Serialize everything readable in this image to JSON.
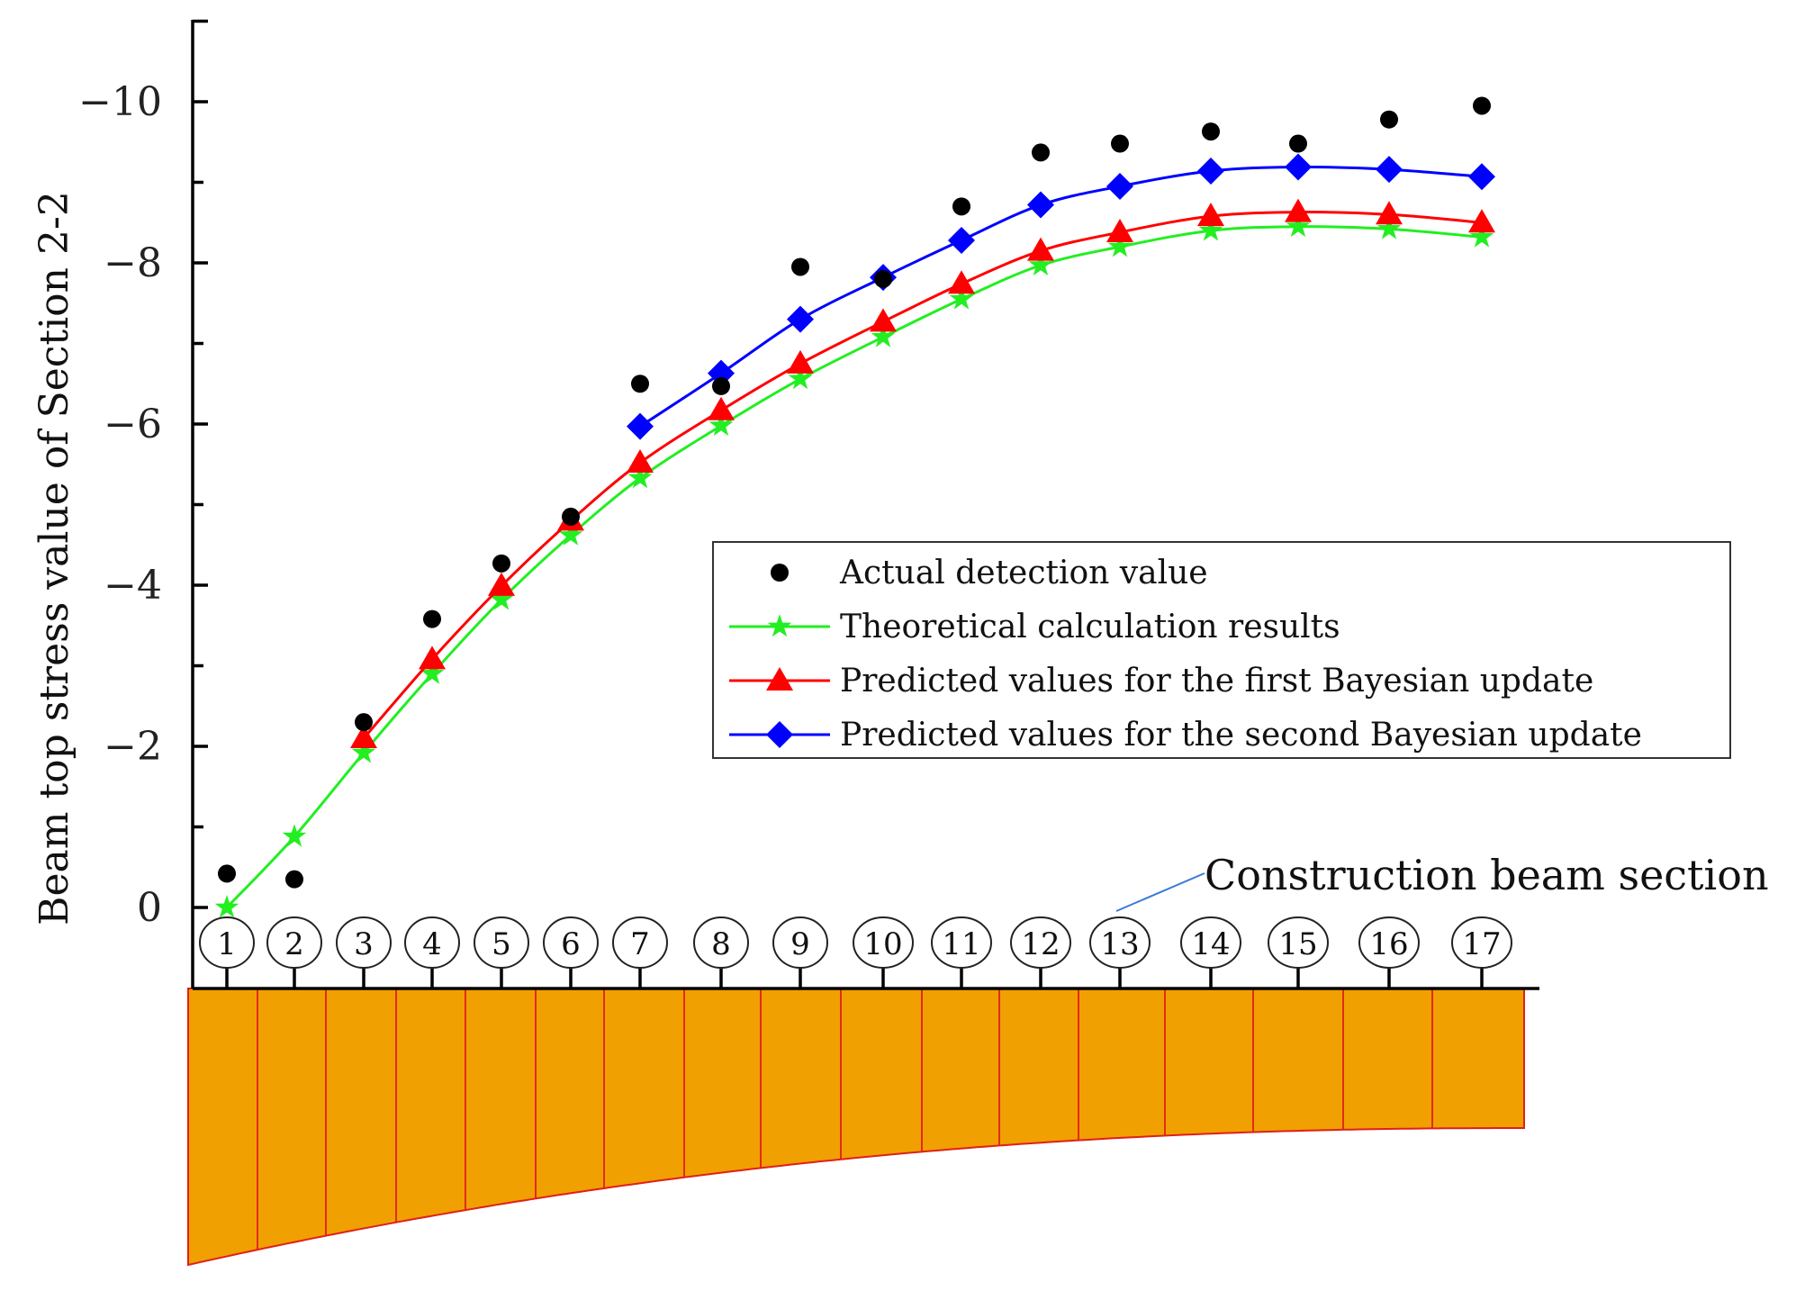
{
  "chart_data": {
    "type": "line",
    "ylabel": "Beam top stress value of Section 2-2",
    "ylim": [
      0.5,
      -11
    ],
    "y_ticks": [
      0,
      -2,
      -4,
      -6,
      -8,
      -10
    ],
    "y_tick_labels": [
      "0",
      "−2",
      "−4",
      "−6",
      "−8",
      "−10"
    ],
    "categories": [
      "1",
      "2",
      "3",
      "4",
      "5",
      "6",
      "7",
      "8",
      "9",
      "10",
      "11",
      "12",
      "13",
      "14",
      "15",
      "16",
      "17"
    ],
    "series": [
      {
        "name": "Actual detection value",
        "style": "scatter",
        "marker": "circle",
        "color": "#000000",
        "x": [
          1,
          2,
          3,
          4,
          5,
          6,
          7,
          8,
          9,
          10,
          11,
          12,
          13,
          14,
          15,
          16,
          17
        ],
        "values": [
          -0.42,
          -0.35,
          -2.3,
          -3.58,
          -4.27,
          -4.85,
          -6.5,
          -6.47,
          -7.95,
          -7.8,
          -8.7,
          -9.37,
          -9.48,
          -9.63,
          -9.48,
          -9.78,
          -9.95
        ]
      },
      {
        "name": "Theoretical calculation results",
        "style": "line",
        "marker": "star",
        "color": "#22ee22",
        "x": [
          1,
          2,
          3,
          4,
          5,
          6,
          7,
          8,
          9,
          10,
          11,
          12,
          13,
          14,
          15,
          16,
          17
        ],
        "values": [
          0,
          -0.88,
          -1.92,
          -2.9,
          -3.82,
          -4.62,
          -5.33,
          -5.98,
          -6.56,
          -7.08,
          -7.55,
          -7.97,
          -8.2,
          -8.4,
          -8.45,
          -8.42,
          -8.32
        ]
      },
      {
        "name": "Predicted values for the first Bayesian update",
        "style": "line",
        "marker": "triangle",
        "color": "#ff0000",
        "x": [
          3,
          4,
          5,
          6,
          7,
          8,
          9,
          10,
          11,
          12,
          13,
          14,
          15,
          16,
          17
        ],
        "values": [
          -2.1,
          -3.08,
          -3.99,
          -4.8,
          -5.52,
          -6.17,
          -6.75,
          -7.27,
          -7.74,
          -8.15,
          -8.38,
          -8.58,
          -8.63,
          -8.6,
          -8.5
        ]
      },
      {
        "name": "Predicted values for the second Bayesian update",
        "style": "line",
        "marker": "diamond",
        "color": "#0000ff",
        "x": [
          7,
          8,
          9,
          10,
          11,
          12,
          13,
          14,
          15,
          16,
          17
        ],
        "values": [
          -5.97,
          -6.63,
          -7.3,
          -7.82,
          -8.28,
          -8.72,
          -8.95,
          -9.14,
          -9.19,
          -9.16,
          -9.07
        ]
      }
    ],
    "annotation": "Construction beam section",
    "legend_position": "right-middle"
  },
  "beam_diagram": {
    "section_labels": [
      "1",
      "2",
      "3",
      "4",
      "5",
      "6",
      "7",
      "8",
      "9",
      "10",
      "11",
      "12",
      "13",
      "14",
      "15",
      "16",
      "17"
    ],
    "fill_color": "#f0a000",
    "edge_color": "#e0201a"
  }
}
